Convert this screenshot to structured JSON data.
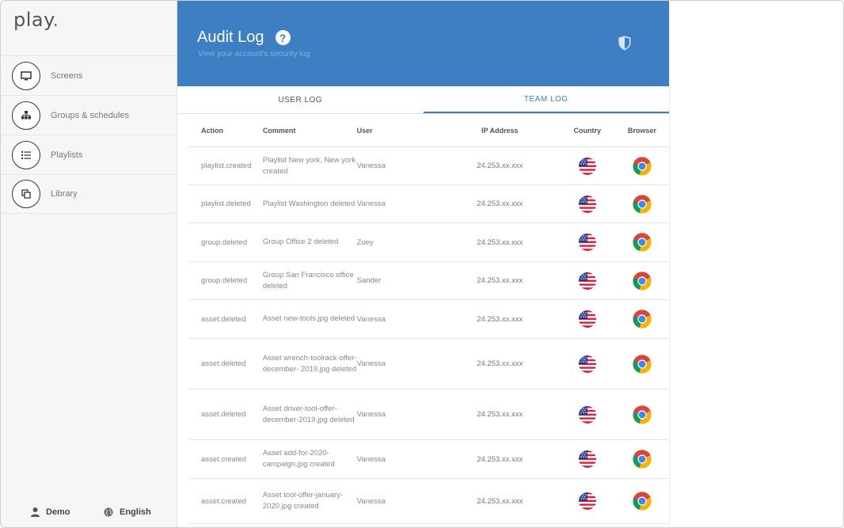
{
  "app": {
    "logo": "play",
    "logo_dot": "."
  },
  "sidebar": {
    "items": [
      {
        "label": "Screens",
        "icon": "monitor-icon"
      },
      {
        "label": "Groups & schedules",
        "icon": "hierarchy-icon"
      },
      {
        "label": "Playlists",
        "icon": "list-icon"
      },
      {
        "label": "Library",
        "icon": "copy-icon"
      }
    ],
    "user": "Demo",
    "language": "English"
  },
  "header": {
    "title": "Audit Log",
    "subtitle": "View your account's security log",
    "accent": "#3d7fc2"
  },
  "tabs": [
    {
      "label": "USER LOG",
      "active": false
    },
    {
      "label": "TEAM LOG",
      "active": true
    }
  ],
  "table": {
    "columns": [
      "Action",
      "Comment",
      "User",
      "IP Address",
      "Country",
      "Browser"
    ],
    "rows": [
      {
        "action": "playlist.created",
        "comment": "Playlist New york, New york created",
        "user": "Vanessa",
        "ip": "24.253.xx.xxx",
        "country": "us-flag-icon",
        "browser": "chrome-icon"
      },
      {
        "action": "playlist.deleted",
        "comment": "Playlist Washington deleted",
        "user": "Vanessa",
        "ip": "24.253.xx.xxx",
        "country": "us-flag-icon",
        "browser": "chrome-icon"
      },
      {
        "action": "group.deleted",
        "comment": "Group Office 2 deleted",
        "user": "Zoey",
        "ip": "24.253.xx.xxx",
        "country": "us-flag-icon",
        "browser": "chrome-icon"
      },
      {
        "action": "group.deleted",
        "comment": "Group San Francisco office deleted",
        "user": "Sander",
        "ip": "24.253.xx.xxx",
        "country": "us-flag-icon",
        "browser": "chrome-icon"
      },
      {
        "action": "asset.deleted",
        "comment": "Asset new-tools.jpg deleted",
        "user": "Vanessa",
        "ip": "24.253.xx.xxx",
        "country": "us-flag-icon",
        "browser": "chrome-icon"
      },
      {
        "action": "asset.deleted",
        "comment": "Asset wrench-toolrack-offer-december- 2019.jpg deleted",
        "user": "Vanessa",
        "ip": "24.253.xx.xxx",
        "country": "us-flag-icon",
        "browser": "chrome-icon"
      },
      {
        "action": "asset.deleted",
        "comment": "Asset driver-tool-offer-december-2019.jpg deleted",
        "user": "Vanessa",
        "ip": "24.253.xx.xxx",
        "country": "us-flag-icon",
        "browser": "chrome-icon"
      },
      {
        "action": "asset.created",
        "comment": "Asset add-for-2020-campaign.jpg created",
        "user": "Vanessa",
        "ip": "24.253.xx.xxx",
        "country": "us-flag-icon",
        "browser": "chrome-icon"
      },
      {
        "action": "asset.created",
        "comment": "Asset tool-offer-january-2020.jpg created",
        "user": "Vanessa",
        "ip": "24.253.xx.xxx",
        "country": "us-flag-icon",
        "browser": "chrome-icon"
      }
    ]
  }
}
